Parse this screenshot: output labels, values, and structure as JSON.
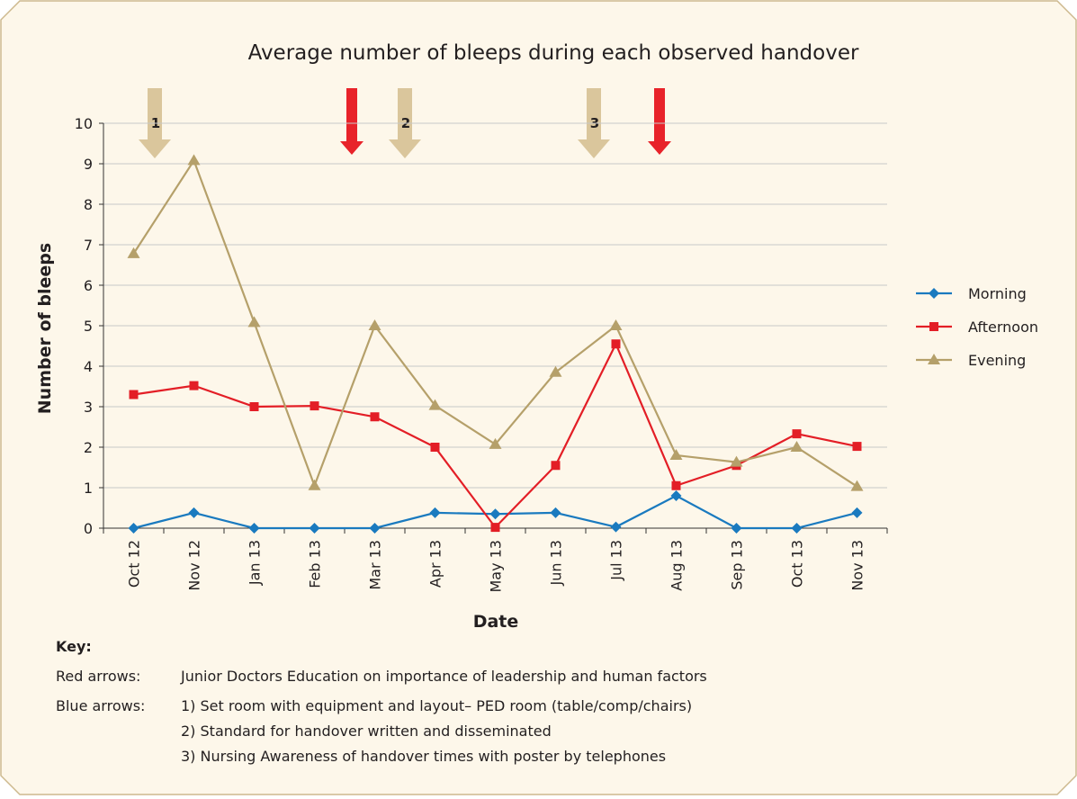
{
  "chart_data": {
    "type": "line",
    "title": "Average number of bleeps during each observed handover",
    "y_label": "Number of bleeps",
    "x_label": "Date",
    "categories": [
      "Oct 12",
      "Nov 12",
      "Jan 13",
      "Feb 13",
      "Mar 13",
      "Apr 13",
      "May 13",
      "Jun 13",
      "Jul 13",
      "Aug 13",
      "Sep 13",
      "Oct 13",
      "Nov 13"
    ],
    "series": [
      {
        "name": "Morning",
        "color": "#1a7abf",
        "marker": "diamond",
        "values": [
          0,
          0.38,
          0,
          0,
          0,
          0.38,
          0.35,
          0.38,
          0.03,
          0.8,
          0,
          0,
          0.38
        ]
      },
      {
        "name": "Afternoon",
        "color": "#e31e26",
        "marker": "square",
        "values": [
          3.3,
          3.52,
          3.0,
          3.02,
          2.75,
          2.0,
          0.02,
          1.55,
          4.55,
          1.05,
          1.55,
          2.33,
          2.02
        ]
      },
      {
        "name": "Evening",
        "color": "#b5a06a",
        "marker": "triangle",
        "values": [
          6.78,
          9.08,
          5.08,
          1.05,
          5.0,
          3.03,
          2.07,
          3.85,
          5.0,
          1.8,
          1.63,
          2.0,
          1.03
        ]
      }
    ],
    "ylim": [
      0,
      10
    ],
    "yticks": [
      0,
      1,
      2,
      3,
      4,
      5,
      6,
      7,
      8,
      9,
      10
    ],
    "grid": true,
    "legend": "right",
    "arrow_labels": [
      "1",
      "2",
      "3"
    ],
    "key": {
      "heading": "Key:",
      "red_label": "Red arrows:",
      "red_text": "Junior Doctors Education on importance of leadership and human factors",
      "blue_label": "Blue arrows:",
      "blue_items": [
        "1)  Set room with equipment and layout– PED room (table/comp/chairs)",
        "2)  Standard for handover written and disseminated",
        "3)  Nursing Awareness of handover times with poster by telephones"
      ]
    }
  }
}
